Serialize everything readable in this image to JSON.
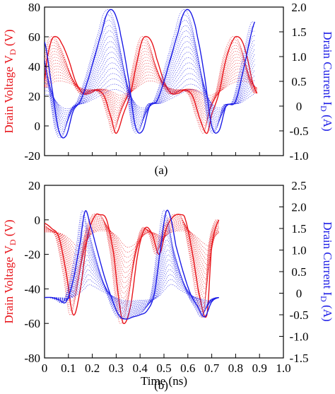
{
  "colors": {
    "voltage": "#e8141a",
    "current": "#1a1ae6",
    "axis": "#000000"
  },
  "chart_data": [
    {
      "type": "line",
      "panel_label": "(a)",
      "ylabel_left": {
        "main": "Drain Voltage V",
        "sub": "D",
        "unit": " (V)"
      },
      "ylabel_right": {
        "main": "Drain Current I",
        "sub": "D",
        "unit": " (A)"
      },
      "xlabel": "",
      "ylim_left": [
        -20,
        80
      ],
      "ylim_right": [
        -1.0,
        2.0
      ],
      "yticks_left": [
        "80",
        "60",
        "40",
        "20",
        "0",
        "-20"
      ],
      "yticks_right": [
        "2.0",
        "1.5",
        "1.0",
        "0.5",
        "0",
        "-0.5",
        "-1.0"
      ],
      "xticks": [],
      "xlim": [
        0,
        1.0
      ],
      "grid": false,
      "series": [
        {
          "axis": "left",
          "color": "#e8141a",
          "x": [
            0.0,
            0.01,
            0.03,
            0.05,
            0.07,
            0.1,
            0.13,
            0.16,
            0.19,
            0.22,
            0.25,
            0.28,
            0.3,
            0.33,
            0.36,
            0.39,
            0.41,
            0.43,
            0.45,
            0.47,
            0.5,
            0.53,
            0.56,
            0.59,
            0.62,
            0.65,
            0.68,
            0.7,
            0.73,
            0.76,
            0.79,
            0.81,
            0.83,
            0.85,
            0.87,
            0.89
          ],
          "values": [
            30,
            45,
            58,
            60,
            56,
            45,
            30,
            22,
            22,
            24,
            20,
            5,
            -5,
            8,
            22,
            45,
            58,
            60,
            56,
            45,
            30,
            22,
            22,
            24,
            20,
            5,
            -5,
            8,
            22,
            45,
            58,
            60,
            56,
            45,
            30,
            22
          ]
        },
        {
          "axis": "right",
          "color": "#1a1ae6",
          "x": [
            0.0,
            0.03,
            0.06,
            0.09,
            0.12,
            0.15,
            0.18,
            0.21,
            0.24,
            0.26,
            0.28,
            0.3,
            0.32,
            0.35,
            0.38,
            0.41,
            0.44,
            0.47,
            0.5,
            0.53,
            0.56,
            0.58,
            0.6,
            0.62,
            0.64,
            0.67,
            0.7,
            0.73,
            0.76,
            0.8,
            0.84,
            0.88
          ],
          "values": [
            1.3,
            0.4,
            -0.5,
            -0.6,
            -0.1,
            0.1,
            0.5,
            1.0,
            1.5,
            1.85,
            1.95,
            1.8,
            1.4,
            0.6,
            -0.4,
            -0.5,
            0.0,
            0.1,
            0.5,
            1.0,
            1.5,
            1.85,
            1.95,
            1.8,
            1.4,
            0.6,
            -0.4,
            -0.5,
            0.0,
            0.1,
            0.9,
            1.7
          ]
        }
      ]
    },
    {
      "type": "line",
      "panel_label": "(b)",
      "ylabel_left": {
        "main": "Drain Voltage V",
        "sub": "D",
        "unit": " (V)"
      },
      "ylabel_right": {
        "main": "Drain Current I",
        "sub": "D",
        "unit": " (A)"
      },
      "xlabel": "Time (ns)",
      "ylim_left": [
        -80,
        20
      ],
      "ylim_right": [
        -1.5,
        2.5
      ],
      "yticks_left": [
        "20",
        "0",
        "-20",
        "-40",
        "-60",
        "-80"
      ],
      "yticks_right": [
        "2.5",
        "2.0",
        "1.5",
        "1.0",
        "0.5",
        "0",
        "-0.5",
        "-1.0",
        "-1.5"
      ],
      "xticks": [
        "0",
        "0.1",
        "0.2",
        "0.3",
        "0.4",
        "0.5",
        "0.6",
        "0.7",
        "0.8",
        "0.9",
        "1.0"
      ],
      "xlim": [
        0,
        1.0
      ],
      "grid": false,
      "series": [
        {
          "axis": "left",
          "color": "#e8141a",
          "x": [
            0.0,
            0.03,
            0.06,
            0.09,
            0.12,
            0.15,
            0.18,
            0.21,
            0.23,
            0.26,
            0.29,
            0.31,
            0.33,
            0.36,
            0.39,
            0.42,
            0.45,
            0.48,
            0.51,
            0.54,
            0.57,
            0.59,
            0.62,
            0.65,
            0.68,
            0.7,
            0.73
          ],
          "values": [
            -2,
            -5,
            -10,
            -30,
            -55,
            -40,
            -10,
            2,
            3,
            0,
            -20,
            -45,
            -60,
            -50,
            -20,
            -5,
            -8,
            -20,
            -5,
            2,
            3,
            0,
            -20,
            -45,
            -55,
            -15,
            0
          ]
        },
        {
          "axis": "right",
          "color": "#1a1ae6",
          "x": [
            0.0,
            0.03,
            0.06,
            0.09,
            0.12,
            0.15,
            0.17,
            0.19,
            0.22,
            0.25,
            0.28,
            0.31,
            0.34,
            0.37,
            0.4,
            0.43,
            0.46,
            0.49,
            0.51,
            0.53,
            0.55,
            0.58,
            0.61,
            0.64,
            0.67,
            0.7,
            0.73
          ],
          "values": [
            -0.1,
            -0.1,
            -0.15,
            -0.2,
            0.3,
            1.2,
            1.9,
            1.6,
            1.0,
            0.4,
            -0.1,
            -0.5,
            -0.6,
            -0.55,
            -0.5,
            -0.4,
            0.0,
            1.2,
            1.9,
            1.7,
            1.1,
            0.5,
            0.0,
            -0.3,
            -0.55,
            -0.2,
            -0.1
          ]
        }
      ]
    }
  ]
}
